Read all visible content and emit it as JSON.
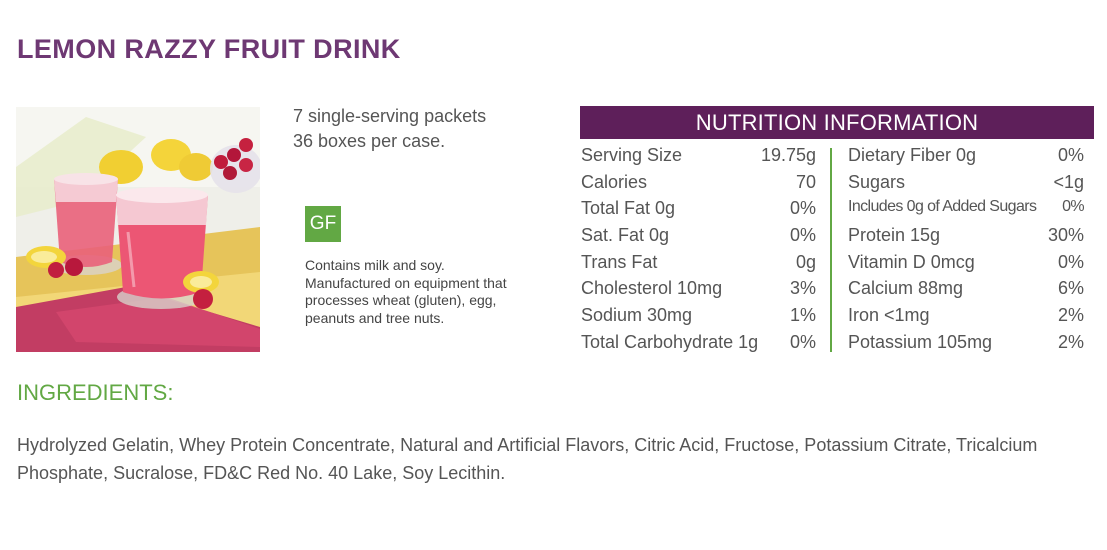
{
  "product": {
    "title": "LEMON RAZZY FRUIT DRINK",
    "photo_alt": "Two glasses of pink lemon raspberry drink with lemons and raspberries",
    "packaging": [
      "7 single-serving packets",
      "36 boxes per case."
    ],
    "badge": "GF",
    "allergen_note": "Contains milk and soy. Manufactured on equipment that processes wheat (gluten), egg, peanuts and tree nuts."
  },
  "nutrition": {
    "header": "NUTRITION INFORMATION",
    "left": [
      {
        "label": "Serving Size",
        "value": "19.75g"
      },
      {
        "label": "Calories",
        "value": "70"
      },
      {
        "label": "Total Fat 0g",
        "value": "0%"
      },
      {
        "label": "Sat. Fat 0g",
        "value": "0%"
      },
      {
        "label": "Trans Fat",
        "value": "0g"
      },
      {
        "label": "Cholesterol 10mg",
        "value": "3%"
      },
      {
        "label": "Sodium 30mg",
        "value": "1%"
      },
      {
        "label": "Total Carbohydrate 1g",
        "value": "0%"
      }
    ],
    "right": [
      {
        "label": "Dietary Fiber 0g",
        "value": "0%"
      },
      {
        "label": "Sugars",
        "value": "<1g"
      },
      {
        "label": "Includes 0g of Added Sugars",
        "value": "0%"
      },
      {
        "label": "Protein 15g",
        "value": "30%"
      },
      {
        "label": "Vitamin D 0mcg",
        "value": "0%"
      },
      {
        "label": "Calcium 88mg",
        "value": "6%"
      },
      {
        "label": "Iron <1mg",
        "value": "2%"
      },
      {
        "label": "Potassium 105mg",
        "value": "2%"
      }
    ]
  },
  "ingredients": {
    "heading": "INGREDIENTS:",
    "text": "Hydrolyzed Gelatin, Whey Protein Concentrate, Natural and Artificial Flavors, Citric Acid, Fructose, Potassium Citrate, Tricalcium Phosphate, Sucralose, FD&C Red No. 40 Lake, Soy Lecithin."
  },
  "colors": {
    "title": "#6e3873",
    "header_bg": "#5e1f5a",
    "accent_green": "#62a844",
    "text": "#555555"
  }
}
